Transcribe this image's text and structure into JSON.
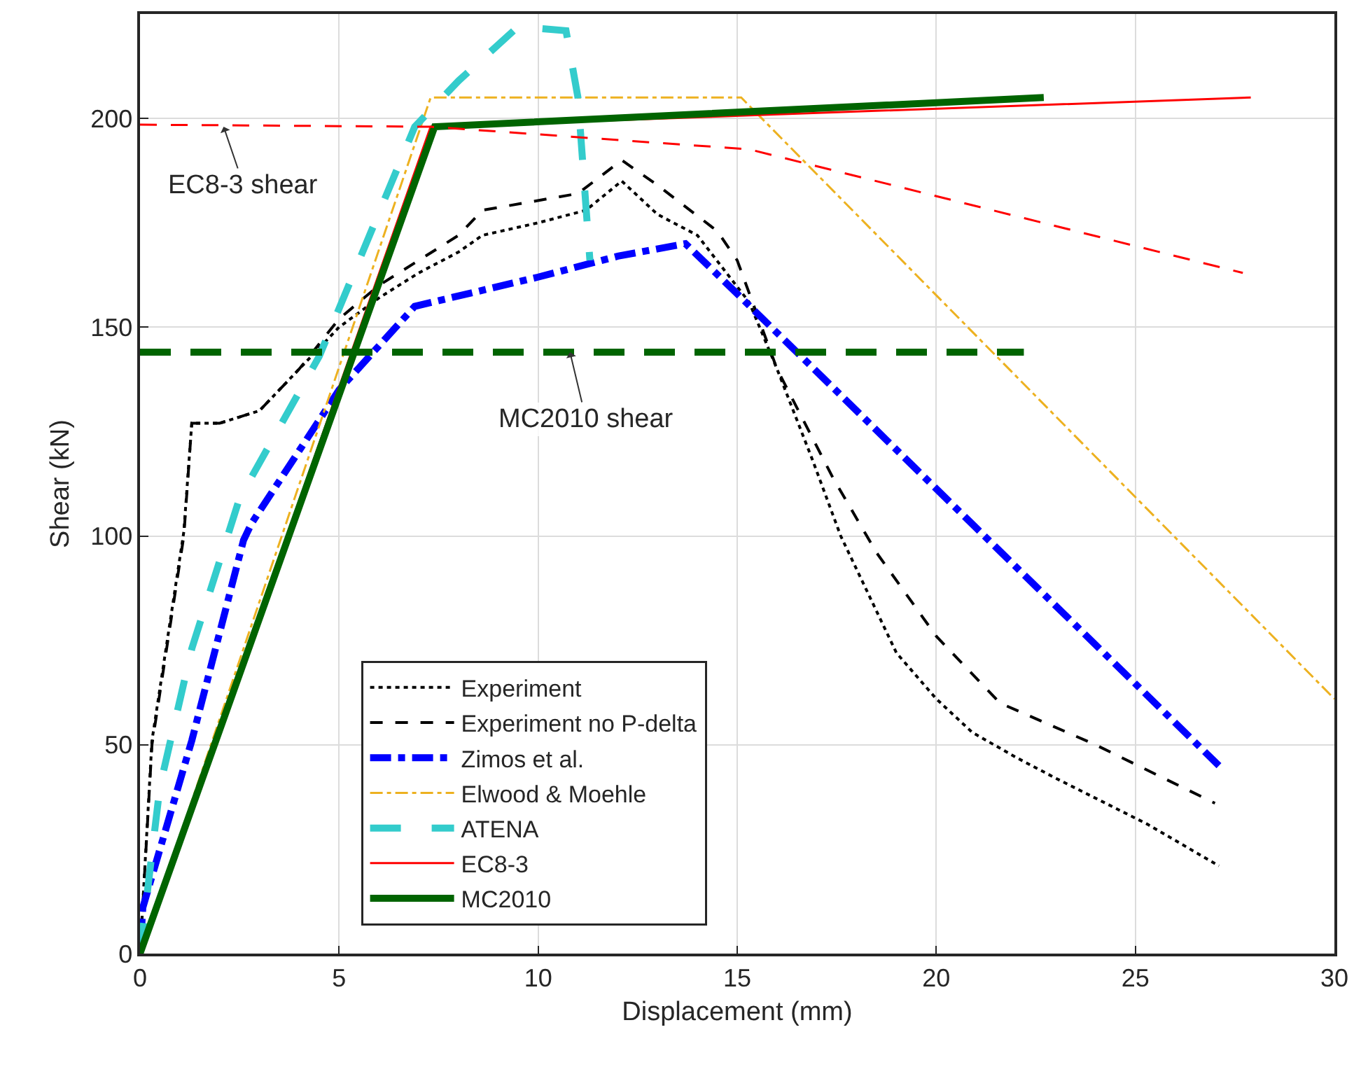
{
  "chart_data": {
    "type": "line",
    "xlabel": "Displacement (mm)",
    "ylabel": "Shear (kN)",
    "xlim": [
      0,
      30
    ],
    "xticks": [
      0,
      5,
      10,
      15,
      20,
      25,
      30
    ],
    "ylim": [
      0,
      225
    ],
    "yticks": [
      0,
      50,
      100,
      150,
      200
    ],
    "grid": true,
    "legend": "bottom",
    "series": [
      {
        "name": "Experiment",
        "color": "#000000",
        "line_style": "dotted",
        "x": [
          0,
          0.3,
          1.1,
          1.3,
          2,
          3,
          4,
          5,
          6,
          7,
          8,
          8.6,
          10,
          11.2,
          12.1,
          13,
          14,
          15.3,
          16,
          16.9,
          17.6,
          18.3,
          19,
          20,
          20.9,
          22,
          23,
          25.3,
          27.1
        ],
        "values": [
          0,
          51,
          101,
          127,
          127,
          130,
          140,
          150,
          157,
          163,
          168,
          172,
          175,
          178,
          185,
          177,
          172,
          156,
          140,
          118,
          100,
          86,
          72,
          61,
          53,
          47,
          42,
          31,
          21
        ]
      },
      {
        "name": "Experiment no P-delta",
        "color": "#000000",
        "line_style": "dashed",
        "x": [
          0,
          0.3,
          1.1,
          1.3,
          2,
          3,
          4,
          5,
          6,
          7,
          8,
          8.6,
          11,
          12.1,
          13,
          14.5,
          15,
          16,
          17.4,
          18.5,
          20,
          21.6,
          24,
          27
        ],
        "values": [
          0,
          50,
          100,
          127,
          127,
          130,
          140,
          152,
          160,
          166,
          172,
          178,
          182,
          190,
          184,
          173,
          166,
          140,
          114,
          96,
          76,
          60,
          50,
          36
        ]
      },
      {
        "name": "Zimos et al.",
        "color": "#0000ff",
        "line_style": "dashdot",
        "x": [
          0,
          0.07,
          1.3,
          2.6,
          2.8,
          5,
          6.9,
          10,
          12,
          13.7,
          15,
          27.1
        ],
        "values": [
          0,
          11,
          51,
          99,
          103,
          135,
          155,
          162,
          167,
          170,
          158,
          45
        ]
      },
      {
        "name": "Elwood & Moehle",
        "color": "#edb120",
        "line_style": "dashdot",
        "x": [
          0,
          7.3,
          15.1,
          30
        ],
        "values": [
          0,
          205,
          205,
          61
        ]
      },
      {
        "name": "ATENA",
        "color": "#33cccc",
        "line_style": "dashed",
        "x": [
          0,
          0.5,
          1.3,
          2.5,
          4.5,
          6.9,
          8,
          9.5,
          10.7,
          11,
          11.3
        ],
        "values": [
          0,
          40,
          73,
          109,
          143,
          198,
          209,
          222,
          221,
          205,
          166
        ]
      },
      {
        "name": "EC8-3",
        "color": "#ff0000",
        "line_style": "solid",
        "x": [
          0,
          7.3,
          27.9
        ],
        "values": [
          0,
          198,
          205
        ]
      },
      {
        "name": "MC2010",
        "color": "#006400",
        "line_style": "solid",
        "x": [
          0,
          7.4,
          22.7
        ],
        "values": [
          0,
          198,
          205
        ]
      },
      {
        "color": "#ff0000",
        "line_style": "dashed",
        "x": [
          0,
          7.3,
          15.3,
          27.7
        ],
        "values": [
          198.5,
          198,
          192.6,
          163
        ]
      },
      {
        "color": "#006400",
        "line_style": "dashed",
        "x": [
          0,
          22.2
        ],
        "values": [
          144,
          144
        ]
      }
    ],
    "annotations": [
      {
        "text": "EC8-3 shear",
        "x": 2.1,
        "y": 198
      },
      {
        "text": "MC2010 shear",
        "x": 10.8,
        "y": 144
      }
    ]
  }
}
